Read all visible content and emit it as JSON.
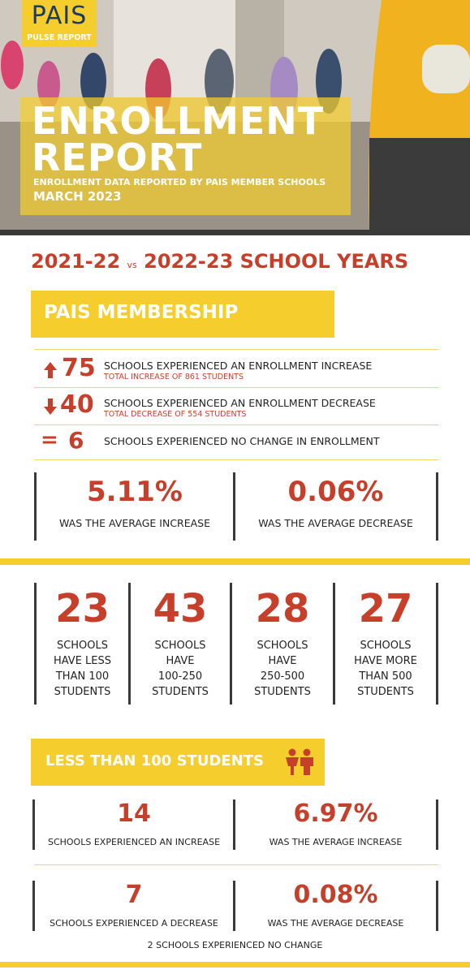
{
  "header": {
    "brand": "PAIS",
    "brand_sub": "PULSE REPORT",
    "title_line1": "ENROLLMENT",
    "title_line2": "REPORT",
    "subtitle": "ENROLLMENT DATA REPORTED BY PAIS MEMBER SCHOOLS",
    "date": "MARCH 2023"
  },
  "comparison": {
    "left": "2021-22",
    "vs": "vs",
    "right": "2022-23 SCHOOL YEARS"
  },
  "membership": {
    "heading": "PAIS MEMBERSHIP",
    "rows": [
      {
        "count": "75",
        "text": "SCHOOLS EXPERIENCED AN ENROLLMENT INCREASE",
        "note": "TOTAL INCREASE OF 861 STUDENTS"
      },
      {
        "count": "40",
        "text": "SCHOOLS EXPERIENCED AN ENROLLMENT DECREASE",
        "note": "TOTAL DECREASE OF 554 STUDENTS"
      },
      {
        "symbol": "=",
        "count": "6",
        "text": "SCHOOLS EXPERIENCED NO CHANGE IN ENROLLMENT"
      }
    ],
    "averages": [
      {
        "value": "5.11%",
        "label": "WAS THE AVERAGE INCREASE"
      },
      {
        "value": "0.06%",
        "label": "WAS THE AVERAGE DECREASE"
      }
    ]
  },
  "size_groups": [
    {
      "count": "23",
      "lines": [
        "SCHOOLS",
        "HAVE LESS",
        "THAN 100",
        "STUDENTS"
      ]
    },
    {
      "count": "43",
      "lines": [
        "SCHOOLS",
        "HAVE",
        "100-250",
        "STUDENTS"
      ]
    },
    {
      "count": "28",
      "lines": [
        "SCHOOLS",
        "HAVE",
        "250-500",
        "STUDENTS"
      ]
    },
    {
      "count": "27",
      "lines": [
        "SCHOOLS",
        "HAVE MORE",
        "THAN 500",
        "STUDENTS"
      ]
    }
  ],
  "small_schools": {
    "heading": "LESS THAN 100 STUDENTS",
    "stats": [
      {
        "value": "14",
        "label": "SCHOOLS EXPERIENCED AN INCREASE"
      },
      {
        "value": "6.97%",
        "label": "WAS THE AVERAGE INCREASE"
      },
      {
        "value": "7",
        "label": "SCHOOLS EXPERIENCED A DECREASE"
      },
      {
        "value": "0.08%",
        "label": "WAS THE AVERAGE DECREASE"
      }
    ],
    "footnote": "2 SCHOOLS EXPERIENCED NO CHANGE"
  }
}
